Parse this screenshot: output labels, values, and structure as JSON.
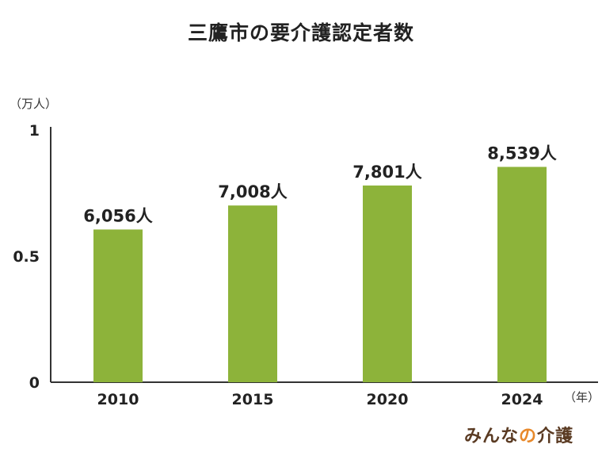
{
  "chart_data": {
    "type": "bar",
    "title": "三鷹市の要介護認定者数",
    "y_unit": "（万人）",
    "x_unit": "（年）",
    "categories": [
      "2010",
      "2015",
      "2020",
      "2024"
    ],
    "values": [
      0.6056,
      0.7008,
      0.7801,
      0.8539
    ],
    "data_labels": [
      "6,056人",
      "7,008人",
      "7,801人",
      "8,539人"
    ],
    "yticks": [
      "0",
      "0.5",
      "1"
    ],
    "ylim": [
      0,
      1
    ],
    "bar_color": "#8db33a",
    "grid": false
  },
  "logo": {
    "main": "みんな",
    "accent": "の",
    "tail": "介護"
  }
}
